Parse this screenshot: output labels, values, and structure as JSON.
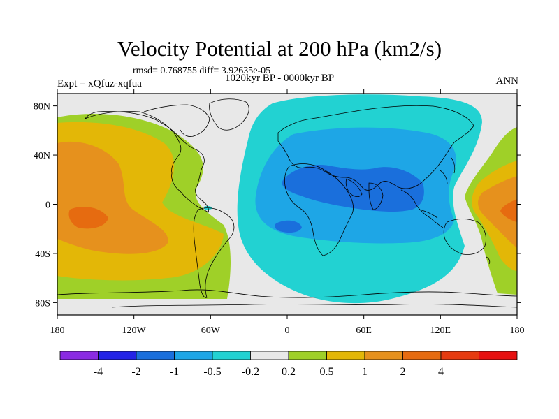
{
  "title": "Velocity Potential at 200 hPa (km2/s)",
  "stats": "rmsd= 0.768755  diff= 3.92635e-05",
  "experiment": "Expt = xQfuz-xqfua",
  "period": "1020kyr BP - 0000kyr BP",
  "season": "ANN",
  "map": {
    "projection": "cylindrical equidistant",
    "lon_range": [
      -180,
      180
    ],
    "lat_range": [
      -90,
      90
    ],
    "lon_ticks": [
      {
        "lon": -180,
        "label": "180"
      },
      {
        "lon": -120,
        "label": "120W"
      },
      {
        "lon": -60,
        "label": "60W"
      },
      {
        "lon": 0,
        "label": "0"
      },
      {
        "lon": 60,
        "label": "60E"
      },
      {
        "lon": 120,
        "label": "120E"
      },
      {
        "lon": 180,
        "label": "180"
      }
    ],
    "lat_ticks": [
      {
        "lat": 80,
        "label": "80N"
      },
      {
        "lat": 40,
        "label": "40N"
      },
      {
        "lat": 0,
        "label": "0"
      },
      {
        "lat": -40,
        "label": "40S"
      },
      {
        "lat": -80,
        "label": "80S"
      }
    ]
  },
  "colorbar": {
    "colors": [
      "#8a2be2",
      "#2323e6",
      "#1a6fdc",
      "#1ea6e6",
      "#22d2d2",
      "#e8e8e8",
      "#9fd028",
      "#e3b707",
      "#e6911d",
      "#e66b10",
      "#e63b10",
      "#e61010"
    ],
    "labels": [
      "-4",
      "-2",
      "-1",
      "-0.5",
      "-0.2",
      "0.2",
      "0.5",
      "1",
      "2",
      "4"
    ]
  }
}
